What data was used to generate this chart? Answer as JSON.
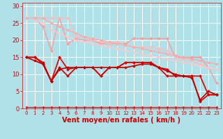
{
  "background_color": "#b0e0e8",
  "grid_color": "#d0eef4",
  "xlabel": "Vent moyen/en rafales ( km/h )",
  "xlabel_color": "#cc0000",
  "xlabel_fontsize": 7,
  "tick_color": "#cc0000",
  "xlim": [
    -0.5,
    23.5
  ],
  "ylim": [
    0,
    31
  ],
  "yticks": [
    0,
    5,
    10,
    15,
    20,
    25,
    30
  ],
  "xticks": [
    0,
    1,
    2,
    3,
    4,
    5,
    6,
    7,
    8,
    9,
    10,
    11,
    12,
    13,
    14,
    15,
    16,
    17,
    18,
    19,
    20,
    21,
    22,
    23
  ],
  "lines": [
    {
      "x": [
        1,
        2,
        3,
        4,
        5,
        6,
        7,
        8,
        9,
        10,
        11,
        12,
        13,
        14,
        15,
        16,
        17,
        18,
        19,
        20,
        21,
        22,
        23
      ],
      "y": [
        26.5,
        24,
        17,
        26.5,
        19,
        20.5,
        20,
        20,
        19,
        19,
        19,
        19,
        20.5,
        20.5,
        20.5,
        20.5,
        20.5,
        15,
        15,
        15,
        15,
        12,
        7.5
      ],
      "color": "#ff9999",
      "linewidth": 1.0,
      "marker": "D",
      "markersize": 2.0
    },
    {
      "x": [
        1,
        2,
        3,
        4,
        5,
        6,
        7,
        8,
        9,
        10,
        11,
        12,
        13,
        14,
        15,
        16,
        17,
        18,
        19,
        20,
        21,
        22,
        23
      ],
      "y": [
        26.5,
        26.5,
        26.5,
        26.5,
        26.5,
        21,
        21,
        20,
        19.5,
        19,
        19.5,
        18.5,
        18,
        18,
        18,
        17.5,
        17,
        15,
        14.5,
        14,
        13,
        12,
        11.5
      ],
      "color": "#ffbbbb",
      "linewidth": 1.0,
      "marker": "D",
      "markersize": 2.0
    },
    {
      "x": [
        1,
        2,
        3,
        4,
        5,
        6,
        7,
        8,
        9,
        10,
        11,
        12,
        13,
        14,
        15,
        16,
        17,
        18,
        19,
        20,
        21,
        22,
        23
      ],
      "y": [
        26,
        25,
        23,
        22,
        21,
        20,
        19.5,
        19,
        18.5,
        18,
        17.5,
        17,
        16.5,
        16,
        15.5,
        15,
        14.5,
        14,
        13.5,
        13,
        12.5,
        12,
        11.5
      ],
      "color": "#ffcccc",
      "linewidth": 1.0,
      "marker": "D",
      "markersize": 2.0
    },
    {
      "x": [
        0,
        1,
        2,
        3,
        4,
        5,
        6,
        7,
        8,
        9,
        10,
        11,
        12,
        13,
        14,
        15,
        16,
        17,
        18,
        19,
        20,
        21,
        22,
        23
      ],
      "y": [
        26.5,
        26.5,
        26.5,
        25,
        24,
        23,
        22,
        21,
        20.5,
        20,
        19.5,
        19,
        18.5,
        18,
        17.5,
        17,
        16.5,
        16,
        15.5,
        15,
        14.5,
        14,
        13.5,
        13
      ],
      "color": "#ffaaaa",
      "linewidth": 1.0,
      "marker": "D",
      "markersize": 2.0
    },
    {
      "x": [
        0,
        1,
        2,
        3,
        4,
        5,
        6,
        7,
        8,
        9,
        10,
        11,
        12,
        13,
        14,
        15,
        16,
        17,
        18,
        19,
        20,
        21,
        22,
        23
      ],
      "y": [
        15,
        15,
        13.5,
        8,
        12,
        9.5,
        12,
        12,
        12,
        9.5,
        12,
        12,
        13.5,
        13.5,
        13.5,
        13.5,
        12,
        11.5,
        9.5,
        9.5,
        9.5,
        2,
        4,
        4
      ],
      "color": "#cc0000",
      "linewidth": 1.2,
      "marker": "D",
      "markersize": 2.0
    },
    {
      "x": [
        0,
        1,
        2,
        3,
        4,
        5,
        6,
        7,
        8,
        9,
        10,
        11,
        12,
        13,
        14,
        15,
        16,
        17,
        18,
        19,
        20,
        21,
        22,
        23
      ],
      "y": [
        15,
        15,
        13,
        8,
        15,
        11.5,
        12,
        12,
        12,
        9.5,
        12,
        12,
        13.5,
        13.5,
        13.5,
        13.5,
        12,
        9.5,
        9.5,
        9.5,
        9.5,
        9.5,
        4,
        4
      ],
      "color": "#dd0000",
      "linewidth": 1.2,
      "marker": "D",
      "markersize": 2.0
    },
    {
      "x": [
        0,
        1,
        2,
        3,
        4,
        5,
        6,
        7,
        8,
        9,
        10,
        11,
        12,
        13,
        14,
        15,
        16,
        17,
        18,
        19,
        20,
        21,
        22,
        23
      ],
      "y": [
        15,
        14,
        13,
        8,
        11.5,
        12,
        12,
        12,
        12,
        12,
        12,
        12,
        12,
        12.5,
        13,
        13,
        12,
        11,
        10,
        9.5,
        9,
        2.5,
        5,
        4
      ],
      "color": "#bb0000",
      "linewidth": 1.2,
      "marker": "D",
      "markersize": 2.0
    },
    {
      "x": [
        0,
        1,
        2,
        3,
        4,
        5,
        6,
        7,
        8,
        9,
        10,
        11,
        12,
        13,
        14,
        15,
        16,
        17,
        18,
        19,
        20,
        21,
        22,
        23
      ],
      "y": [
        0.5,
        0.5,
        0.5,
        0.5,
        0.5,
        0.5,
        0.5,
        0.5,
        0.5,
        0.5,
        0.5,
        0.5,
        0.5,
        0.5,
        0.5,
        0.5,
        0.5,
        0.5,
        0.5,
        0.5,
        0.5,
        0.5,
        0.5,
        0.5
      ],
      "color": "#cc0000",
      "linewidth": 0.8,
      "marker": "D",
      "markersize": 1.5
    }
  ]
}
